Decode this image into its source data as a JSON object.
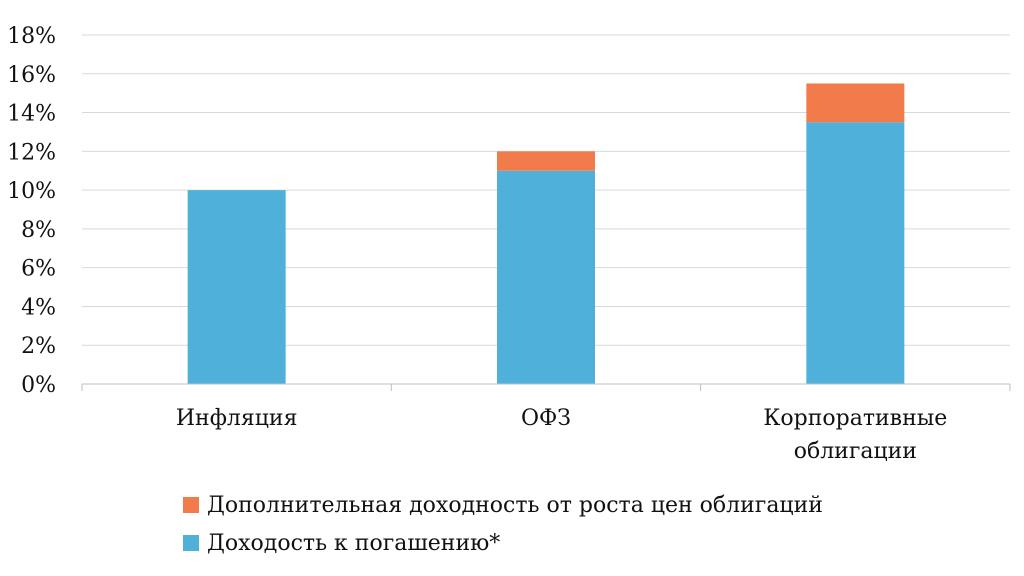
{
  "chart_data": {
    "type": "bar",
    "stacked": true,
    "categories": [
      "Инфляция",
      "ОФЗ",
      "Корпоративные облигации"
    ],
    "category_label_lines": [
      [
        "Инфляция"
      ],
      [
        "ОФЗ"
      ],
      [
        "Корпоративные",
        "облигации"
      ]
    ],
    "series": [
      {
        "name": "Доходость к погашению*",
        "values": [
          10,
          11,
          13.5
        ],
        "color": "#4fb1d9"
      },
      {
        "name": "Дополнительная доходность от роста цен облигаций",
        "values": [
          0,
          1,
          2
        ],
        "color": "#f27b4b"
      }
    ],
    "ylim": [
      0,
      18
    ],
    "yticks": [
      "0%",
      "2%",
      "4%",
      "6%",
      "8%",
      "10%",
      "12%",
      "14%",
      "16%",
      "18%"
    ],
    "ytick_values": [
      0,
      2,
      4,
      6,
      8,
      10,
      12,
      14,
      16,
      18
    ],
    "grid": true,
    "legend_position": "bottom",
    "legend_order": [
      1,
      0
    ]
  }
}
